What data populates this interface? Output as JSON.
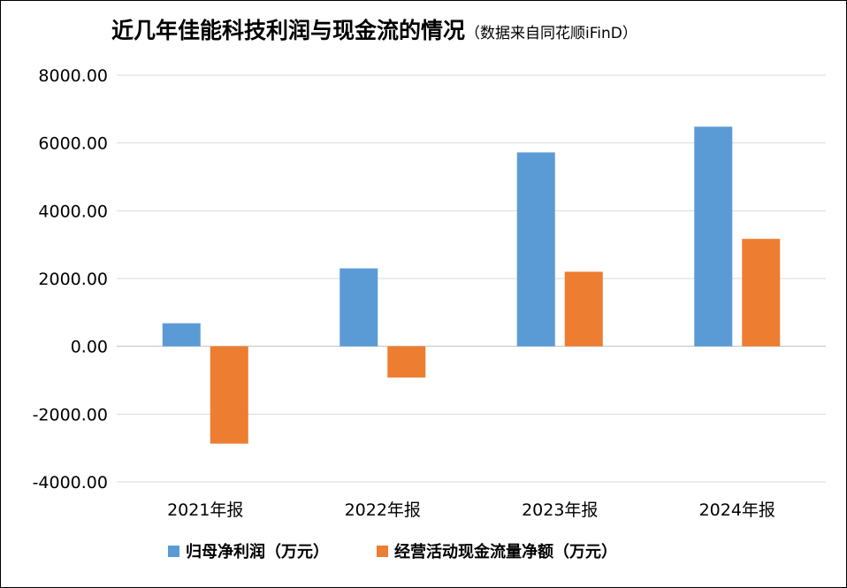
{
  "chart_data": {
    "type": "bar",
    "title": "近几年佳能科技利润与现金流的情况",
    "subtitle": "（数据来自同花顺iFinD）",
    "categories": [
      "2021年报",
      "2022年报",
      "2023年报",
      "2024年报"
    ],
    "series": [
      {
        "name": "归母净利润（万元）",
        "values": [
          680,
          2300,
          5720,
          6480
        ],
        "color": "#5B9BD5"
      },
      {
        "name": "经营活动现金流量净额（万元）",
        "values": [
          -2870,
          -920,
          2200,
          3170
        ],
        "color": "#ED7D31"
      }
    ],
    "ylim": [
      -4000,
      8000
    ],
    "yticks": [
      "8000.00",
      "6000.00",
      "4000.00",
      "2000.00",
      "0.00",
      "-2000.00",
      "-4000.00"
    ],
    "grid": true,
    "legend": "bottom"
  }
}
